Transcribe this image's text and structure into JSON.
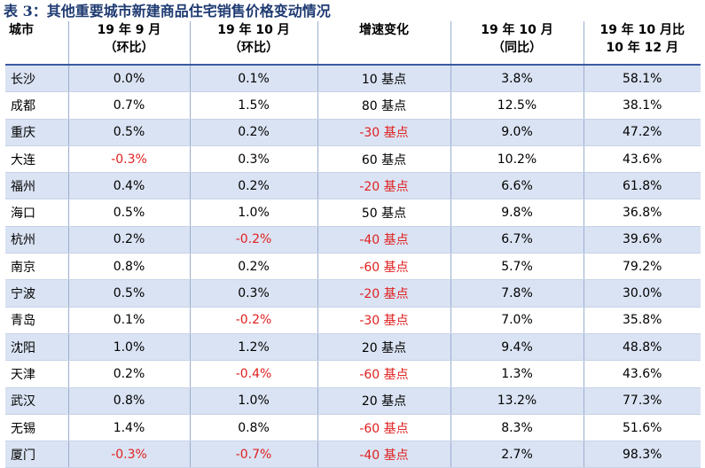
{
  "title": "表 3：其他重要城市新建商品住宅销售价格变动情况",
  "headers": [
    [
      "城市"
    ],
    [
      "19 年 9 月",
      "（环比）"
    ],
    [
      "19 年 10 月",
      "（环比）"
    ],
    [
      "增速变化"
    ],
    [
      "19 年 10 月",
      "（同比）"
    ],
    [
      "19 年 10 月比",
      "10 年 12 月"
    ]
  ],
  "rows": [
    [
      "长沙",
      "0.0%",
      "0.1%",
      "10 基点",
      "3.8%",
      "58.1%"
    ],
    [
      "成都",
      "0.7%",
      "1.5%",
      "80 基点",
      "12.5%",
      "38.1%"
    ],
    [
      "重庆",
      "0.5%",
      "0.2%",
      "-30 基点",
      "9.0%",
      "47.2%"
    ],
    [
      "大连",
      "-0.3%",
      "0.3%",
      "60 基点",
      "10.2%",
      "43.6%"
    ],
    [
      "福州",
      "0.4%",
      "0.2%",
      "-20 基点",
      "6.6%",
      "61.8%"
    ],
    [
      "海口",
      "0.5%",
      "1.0%",
      "50 基点",
      "9.8%",
      "36.8%"
    ],
    [
      "杭州",
      "0.2%",
      "-0.2%",
      "-40 基点",
      "6.7%",
      "39.6%"
    ],
    [
      "南京",
      "0.8%",
      "0.2%",
      "-60 基点",
      "5.7%",
      "79.2%"
    ],
    [
      "宁波",
      "0.5%",
      "0.3%",
      "-20 基点",
      "7.8%",
      "30.0%"
    ],
    [
      "青岛",
      "0.1%",
      "-0.2%",
      "-30 基点",
      "7.0%",
      "35.8%"
    ],
    [
      "沈阳",
      "1.0%",
      "1.2%",
      "20 基点",
      "9.4%",
      "48.8%"
    ],
    [
      "天津",
      "0.2%",
      "-0.4%",
      "-60 基点",
      "1.3%",
      "43.6%"
    ],
    [
      "武汉",
      "0.8%",
      "1.0%",
      "20 基点",
      "13.2%",
      "77.3%"
    ],
    [
      "无锡",
      "1.4%",
      "0.8%",
      "-60 基点",
      "8.3%",
      "51.6%"
    ],
    [
      "厦门",
      "-0.3%",
      "-0.7%",
      "-40 基点",
      "2.7%",
      "98.3%"
    ]
  ],
  "colors": {
    "title": "#1f3b72",
    "row_shade": "#dae3f3",
    "negative": "#e02020",
    "header_rule": "#3b5ba0"
  }
}
